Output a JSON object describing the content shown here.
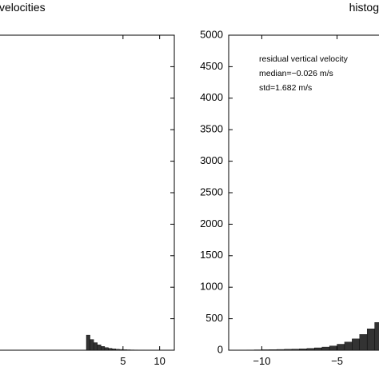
{
  "chart_data": [
    {
      "type": "bar",
      "title": "velocities",
      "xlabel": "",
      "ylabel": "",
      "xlim": [
        -12.0,
        12.0
      ],
      "x_ticks": [
        "5",
        "10"
      ],
      "x_tick_values": [
        5,
        10
      ],
      "grid": false,
      "bin_width": 0.5,
      "bin_centers": [
        0.25,
        0.75,
        1.25,
        1.75,
        2.25,
        2.75,
        3.25,
        3.75,
        4.25,
        4.75,
        5.25,
        5.75,
        6.25,
        6.75,
        7.25,
        7.75,
        8.25,
        8.75,
        9.25,
        9.75
      ],
      "values": [
        240,
        170,
        120,
        85,
        60,
        42,
        30,
        22,
        16,
        12,
        9,
        7,
        5,
        4,
        3,
        3,
        2,
        2,
        1,
        1
      ]
    },
    {
      "type": "bar",
      "title": "histog",
      "xlabel": "",
      "ylabel": "",
      "xlim": [
        -12.2,
        -2.0
      ],
      "ylim": [
        0,
        5000
      ],
      "x_ticks": [
        "−10",
        "−5"
      ],
      "x_tick_values": [
        -10,
        -5
      ],
      "y_ticks": [
        "0",
        "500",
        "1000",
        "1500",
        "2000",
        "2500",
        "3000",
        "3500",
        "4000",
        "4500",
        "5000"
      ],
      "y_tick_values": [
        0,
        500,
        1000,
        1500,
        2000,
        2500,
        3000,
        3500,
        4000,
        4500,
        5000
      ],
      "grid": false,
      "annotation_lines": [
        "residual vertical velocity",
        "median=−0.026 m/s",
        "std=1.682 m/s"
      ],
      "bin_width": 0.5,
      "bin_centers": [
        -11.75,
        -11.25,
        -10.75,
        -10.25,
        -9.75,
        -9.25,
        -8.75,
        -8.25,
        -7.75,
        -7.25,
        -6.75,
        -6.25,
        -5.75,
        -5.25,
        -4.75,
        -4.25,
        -3.75,
        -3.25,
        -2.75,
        -2.25
      ],
      "values": [
        2,
        3,
        4,
        6,
        8,
        10,
        12,
        15,
        18,
        22,
        28,
        38,
        50,
        68,
        95,
        130,
        180,
        250,
        340,
        440
      ]
    }
  ]
}
